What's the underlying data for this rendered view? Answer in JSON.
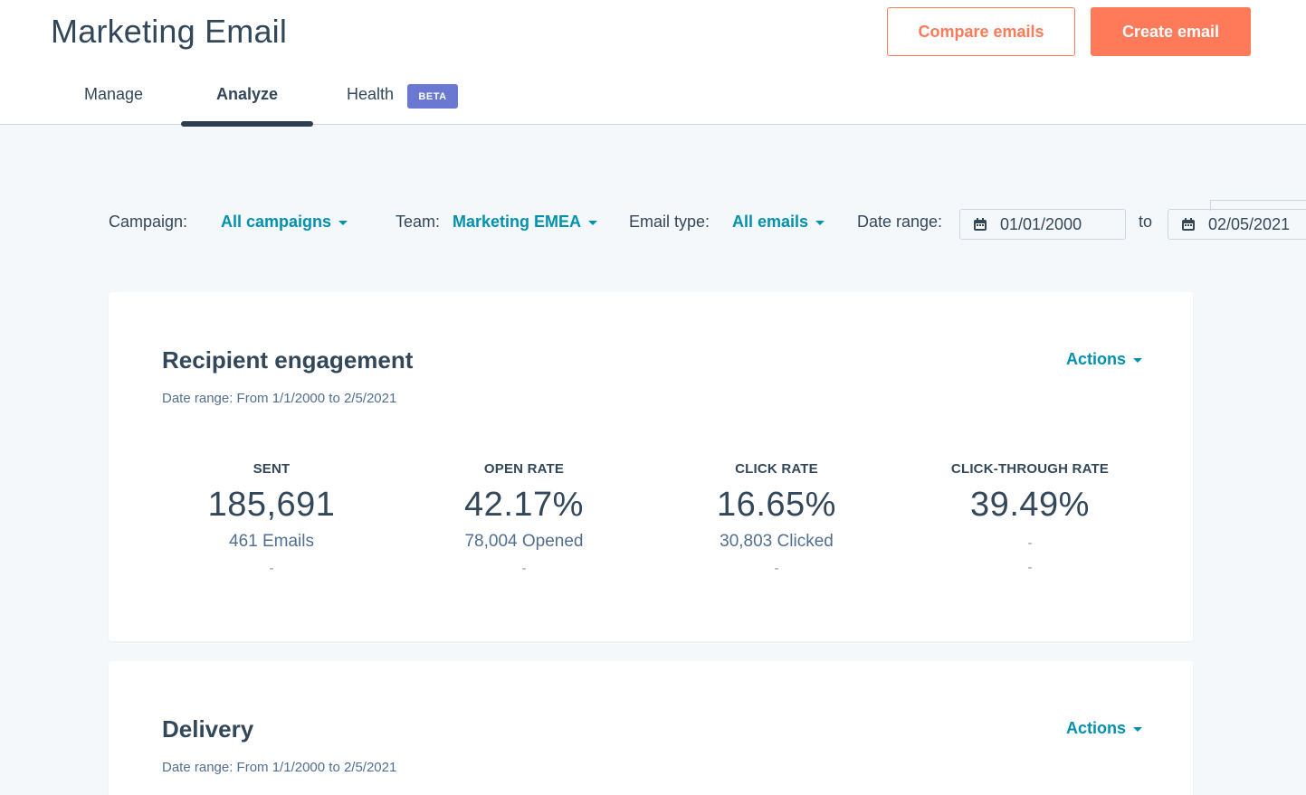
{
  "header": {
    "title": "Marketing Email",
    "compare_label": "Compare emails",
    "create_label": "Create email"
  },
  "tabs": [
    {
      "label": "Manage"
    },
    {
      "label": "Analyze",
      "active": true
    },
    {
      "label": "Health",
      "badge": "BETA"
    }
  ],
  "filters": {
    "campaign_label": "Campaign:",
    "campaign_value": "All campaigns",
    "team_label": "Team:",
    "team_value": "Marketing EMEA",
    "type_label": "Email type:",
    "type_value": "All emails",
    "date_label": "Date range:",
    "date_from": "01/01/2000",
    "date_to_label": "to",
    "date_to": "02/05/2021"
  },
  "engagement": {
    "title": "Recipient engagement",
    "subtitle": "Date range: From 1/1/2000 to 2/5/2021",
    "actions_label": "Actions",
    "metrics": [
      {
        "label": "SENT",
        "value": "185,691",
        "detail": "461 Emails",
        "extra": "-"
      },
      {
        "label": "OPEN RATE",
        "value": "42.17%",
        "detail": "78,004 Opened",
        "extra": "-"
      },
      {
        "label": "CLICK RATE",
        "value": "16.65%",
        "detail": "30,803 Clicked",
        "extra": "-"
      },
      {
        "label": "CLICK-THROUGH RATE",
        "value": "39.49%",
        "detail": "-",
        "extra": "-"
      }
    ]
  },
  "delivery": {
    "title": "Delivery",
    "subtitle": "Date range: From 1/1/2000 to 2/5/2021",
    "actions_label": "Actions"
  },
  "colors": {
    "accent": "#ff7a59",
    "link": "#0091ae",
    "text": "#33475b",
    "badge": "#6a78d1",
    "background": "#f5f8fa"
  },
  "icons": {
    "dropdown": "caret-down-icon",
    "date": "calendar-icon"
  }
}
